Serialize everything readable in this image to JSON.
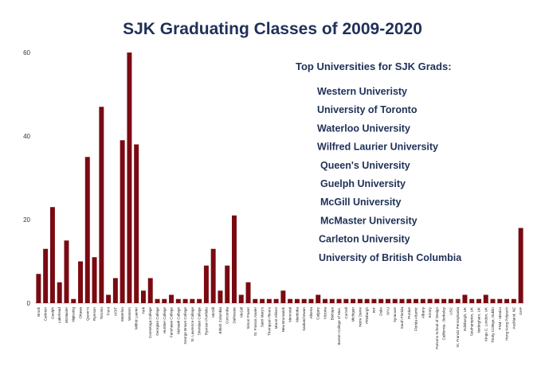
{
  "chart_data": {
    "type": "bar",
    "title": "SJK Graduating Classes of 2009-2020",
    "xlabel": "",
    "ylabel": "",
    "ylim": [
      0,
      60
    ],
    "yticks": [
      0,
      20,
      40,
      60
    ],
    "grid": false,
    "bar_color": "#7a0a12",
    "categories": [
      "Brock",
      "Carleton",
      "Guelph",
      "Lakehead",
      "McMaster",
      "Nipissing",
      "Ottawa",
      "Queen's",
      "Ryerson",
      "Toronto",
      "Trent",
      "UOIT",
      "Waterloo",
      "Western",
      "Wilfrid Laurier",
      "York",
      "Conestoga College",
      "Georgian College",
      "Humber College",
      "Fanshawe College",
      "Mohawk College",
      "George Brown College",
      "St. Lawrence College",
      "Sheridan College",
      "Ryerson Portfolio",
      "McGill",
      "British Columbia",
      "Concordia",
      "Dalhousie",
      "McGill",
      "Simon Fraser",
      "St. Francis Xavier",
      "Saint Mary's",
      "Thompson Rivers",
      "Mount Allison",
      "New Brunswick",
      "Memorial",
      "Manitoba",
      "Saskatchewan",
      "Alberta",
      "Calgary",
      "Victoria",
      "Bishops",
      "Boston College of Mus.",
      "Cornell",
      "Michigan",
      "Notre Dame",
      "Pittsburgh",
      "RIT",
      "Duke",
      "NYU",
      "Syracuse",
      "South Florida",
      "Purdue",
      "Florida Atlantic",
      "Albany",
      "Emory",
      "Parsons School of Design",
      "California - Berkeley",
      "USC",
      "St. Francis Pennsylvania",
      "Edinburgh, UK",
      "Southampton, UK",
      "Nottingham, UK",
      "Kings C. London, UK",
      "Trinity College, Dublin",
      "FSM - Mexico",
      "Hong Kong Polytech",
      "Auckland, NZ",
      "GAP"
    ],
    "values": [
      7,
      13,
      23,
      5,
      15,
      1,
      10,
      35,
      11,
      47,
      2,
      6,
      39,
      60,
      38,
      3,
      6,
      1,
      1,
      2,
      1,
      1,
      1,
      1,
      9,
      13,
      3,
      9,
      21,
      2,
      5,
      1,
      1,
      1,
      1,
      3,
      1,
      1,
      1,
      1,
      2,
      1,
      1,
      1,
      1,
      1,
      1,
      1,
      1,
      1,
      1,
      1,
      1,
      1,
      1,
      1,
      1,
      1,
      1,
      1,
      1,
      2,
      1,
      1,
      2,
      1,
      1,
      1,
      1,
      18
    ],
    "annotation": {
      "title": "Top Universities for SJK Grads:",
      "items": [
        "Western Univeristy",
        "University of Toronto",
        "Waterloo University",
        "Wilfred Laurier University",
        "Queen's University",
        "Guelph University",
        "McGill University",
        "McMaster University",
        "Carleton University",
        "University of British Columbia"
      ]
    }
  }
}
